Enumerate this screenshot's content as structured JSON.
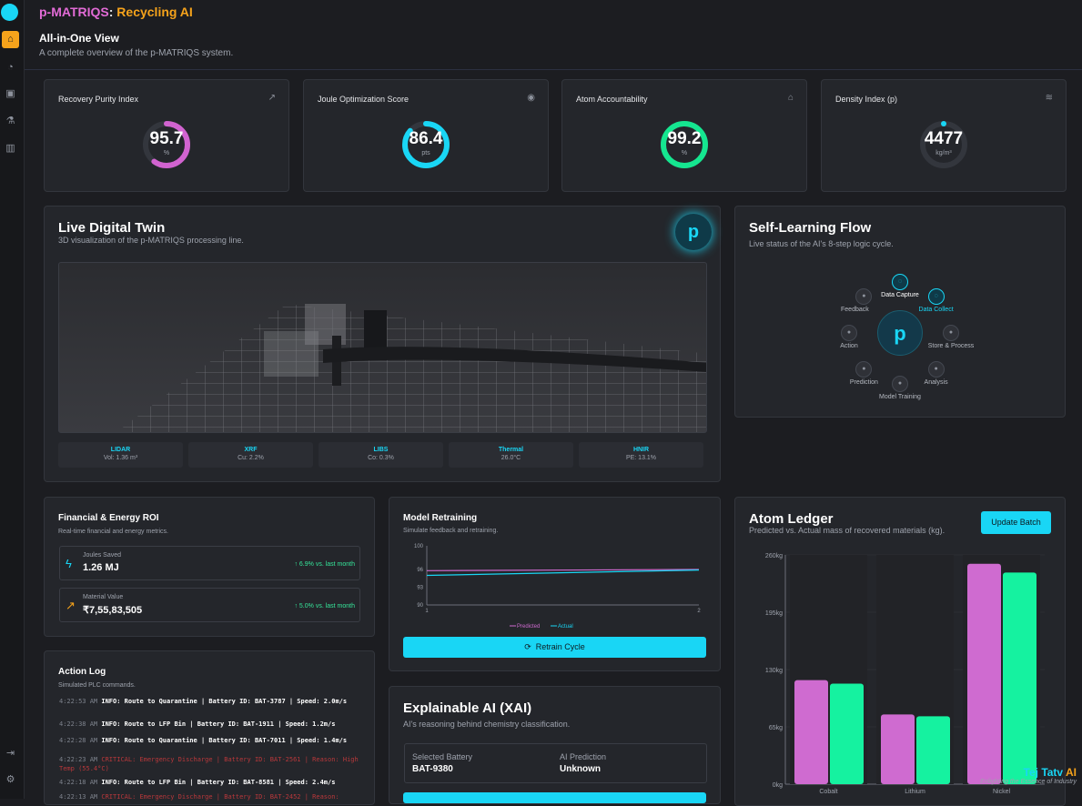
{
  "app": {
    "title_part1": "p-MATRIQS",
    "title_sep": ":",
    "title_part2": "Recycling AI"
  },
  "view": {
    "title": "All-in-One View",
    "subtitle": "A complete overview of the p-MATRIQS system."
  },
  "sidebar": {
    "items": [
      {
        "icon": "home-icon",
        "active": true
      },
      {
        "icon": "gauge-icon"
      },
      {
        "icon": "robot-icon"
      },
      {
        "icon": "flask-icon"
      },
      {
        "icon": "bar-chart-icon"
      }
    ],
    "bottom": [
      {
        "icon": "logout-icon"
      },
      {
        "icon": "gear-icon"
      }
    ]
  },
  "kpis": [
    {
      "title": "Recovery Purity Index",
      "value": "95.7",
      "unit": "%",
      "fraction": 0.6,
      "color": "#d163d0",
      "icon": "trend-up-icon"
    },
    {
      "title": "Joule Optimization Score",
      "value": "86.4",
      "unit": "pts",
      "fraction": 0.864,
      "color": "#19d6f5",
      "icon": "signal-icon"
    },
    {
      "title": "Atom Accountability",
      "value": "99.2",
      "unit": "%",
      "fraction": 0.992,
      "color": "#15e690",
      "icon": "factory-icon"
    },
    {
      "title": "Density Index (p)",
      "value": "4477",
      "unit": "kg/m³",
      "fraction": 0.0,
      "color": "#19d6f5",
      "icon": "layers-icon"
    }
  ],
  "twin": {
    "title": "Live Digital Twin",
    "subtitle": "3D visualization of the p-MATRIQS processing line.",
    "badge": "p",
    "sensors": [
      {
        "name": "LIDAR",
        "value": "Vol: 1.36 m³"
      },
      {
        "name": "XRF",
        "value": "Cu: 2.2%"
      },
      {
        "name": "LIBS",
        "value": "Co: 0.3%"
      },
      {
        "name": "Thermal",
        "value": "26.0°C"
      },
      {
        "name": "HNIR",
        "value": "PE: 13.1%"
      }
    ]
  },
  "flow": {
    "title": "Self-Learning Flow",
    "subtitle": "Live status of the AI's 8-step logic cycle.",
    "center": "p",
    "steps": [
      "Data Capture",
      "Data Collect",
      "Store & Process",
      "Analysis",
      "Model Training",
      "Prediction",
      "Action",
      "Feedback"
    ]
  },
  "roi": {
    "title": "Financial & Energy ROI",
    "subtitle": "Real-time financial and energy metrics.",
    "items": [
      {
        "label": "Joules Saved",
        "value": "1.26 MJ",
        "change": "↑ 6.9% vs. last month",
        "icon": "bolt-icon"
      },
      {
        "label": "Material Value",
        "value": "₹7,55,83,505",
        "change": "↑ 5.0% vs. last month",
        "icon": "trend-up-icon"
      }
    ]
  },
  "retrain": {
    "title": "Model Retraining",
    "subtitle": "Simulate feedback and retraining.",
    "button": "Retrain Cycle",
    "chart": {
      "y_ticks": [
        "100",
        "96",
        "93",
        "90"
      ],
      "x_ticks": [
        "1",
        "2"
      ],
      "legend_predicted": "Predicted",
      "legend_actual": "Actual"
    }
  },
  "log": {
    "title": "Action Log",
    "subtitle": "Simulated PLC commands.",
    "entries": [
      {
        "time": "4:22:53 AM",
        "text": "INFO: Route to Quarantine | Battery ID: BAT-3787 | Speed: 2.0m/s",
        "level": "info"
      },
      {
        "time": "4:22:38 AM",
        "text": "INFO: Route to LFP Bin | Battery ID: BAT-1911 | Speed: 1.2m/s",
        "level": "info"
      },
      {
        "time": "4:22:28 AM",
        "text": "INFO: Route to Quarantine | Battery ID: BAT-7011 | Speed: 1.4m/s",
        "level": "info"
      },
      {
        "time": "4:22:23 AM",
        "text": "CRITICAL: Emergency Discharge | Battery ID: BAT-2561 | Reason: High Temp (55.4°C)",
        "level": "critical"
      },
      {
        "time": "4:22:18 AM",
        "text": "INFO: Route to LFP Bin | Battery ID: BAT-8581 | Speed: 2.4m/s",
        "level": "info"
      },
      {
        "time": "4:22:13 AM",
        "text": "CRITICAL: Emergency Discharge | Battery ID: BAT-2452 | Reason:",
        "level": "critical"
      }
    ]
  },
  "xai": {
    "title": "Explainable AI (XAI)",
    "subtitle": "AI's reasoning behind chemistry classification.",
    "selected_label": "Selected Battery",
    "selected_value": "BAT-9380",
    "prediction_label": "AI Prediction",
    "prediction_value": "Unknown"
  },
  "ledger": {
    "title": "Atom Ledger",
    "subtitle": "Predicted vs. Actual mass of recovered materials (kg).",
    "button": "Update Batch"
  },
  "chart_data": [
    {
      "type": "bar",
      "title": "Atom Ledger",
      "categories": [
        "Cobalt",
        "Lithium",
        "Nickel"
      ],
      "series": [
        {
          "values": [
            118,
            79,
            250
          ],
          "color": "#cf6bd0"
        },
        {
          "values": [
            114,
            77,
            240
          ],
          "color": "#15f2a0"
        }
      ],
      "y_ticks": [
        "260kg",
        "195kg",
        "130kg",
        "65kg",
        "0kg"
      ],
      "ylim": [
        0,
        260
      ]
    },
    {
      "type": "line",
      "title": "Model Retraining",
      "x": [
        1,
        2
      ],
      "series": [
        {
          "name": "Predicted",
          "values": [
            95.8,
            96.0
          ],
          "color": "#cf6bd0"
        },
        {
          "name": "Actual",
          "values": [
            95.0,
            95.9
          ],
          "color": "#19d6f5"
        }
      ],
      "ylim": [
        90,
        100
      ]
    }
  ],
  "watermark": {
    "brand1": "Tej Tatv",
    "brand2": "AI",
    "tagline": "Enlighting the Essence of Industry"
  }
}
